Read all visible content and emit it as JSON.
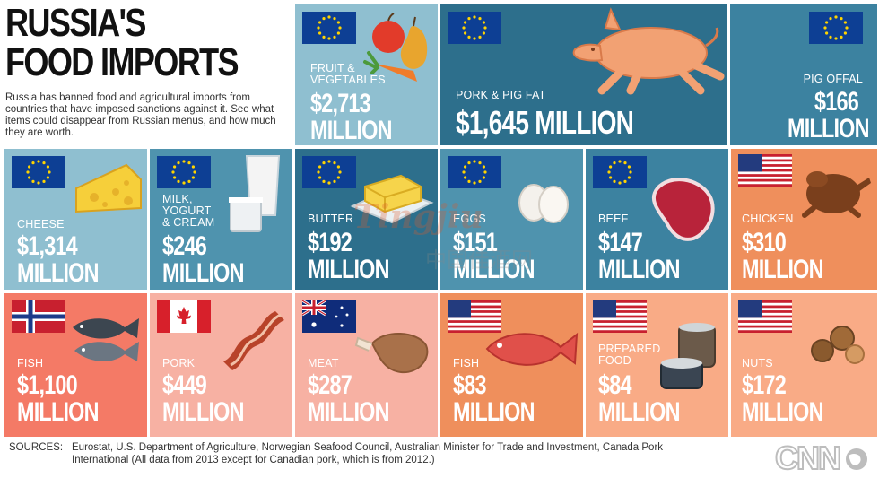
{
  "header": {
    "title_line1": "RUSSIA'S",
    "title_line2": "FOOD IMPORTS",
    "intro": "Russia has banned food and agricultural imports from countries that have imposed sanctions against it. See what items could disappear from Russian menus, and how much they are worth."
  },
  "tiles": {
    "fruit_veg": {
      "label1": "FRUIT &",
      "label2": "VEGETABLES",
      "value1": "$2,713",
      "value2": "MILLION",
      "flag": "eu-flag",
      "icon": "fruit-vegetables-icon"
    },
    "pork_fat": {
      "label": "PORK & PIG FAT",
      "value": "$1,645 MILLION",
      "flag": "eu-flag",
      "icon": "pig-icon"
    },
    "pig_offal": {
      "label": "PIG OFFAL",
      "value1": "$166",
      "value2": "MILLION",
      "flag": "eu-flag"
    },
    "cheese": {
      "label": "CHEESE",
      "value1": "$1,314",
      "value2": "MILLION",
      "flag": "eu-flag",
      "icon": "cheese-icon"
    },
    "milk": {
      "label1": "MILK,",
      "label2": "YOGURT",
      "label3": "& CREAM",
      "value1": "$246",
      "value2": "MILLION",
      "flag": "eu-flag",
      "icon": "milk-icon"
    },
    "butter": {
      "label": "BUTTER",
      "value1": "$192",
      "value2": "MILLION",
      "flag": "eu-flag",
      "icon": "butter-icon"
    },
    "eggs": {
      "label": "EGGS",
      "value1": "$151",
      "value2": "MILLION",
      "flag": "eu-flag",
      "icon": "eggs-icon"
    },
    "beef": {
      "label": "BEEF",
      "value1": "$147",
      "value2": "MILLION",
      "flag": "eu-flag",
      "icon": "steak-icon"
    },
    "chicken": {
      "label": "CHICKEN",
      "value1": "$310",
      "value2": "MILLION",
      "flag": "us-flag",
      "icon": "chicken-icon"
    },
    "fish_no": {
      "label": "FISH",
      "value1": "$1,100",
      "value2": "MILLION",
      "flag": "norway-flag",
      "icon": "fish-icon"
    },
    "pork_ca": {
      "label": "PORK",
      "value1": "$449",
      "value2": "MILLION",
      "flag": "canada-flag",
      "icon": "bacon-icon"
    },
    "meat_au": {
      "label": "MEAT",
      "value1": "$287",
      "value2": "MILLION",
      "flag": "australia-flag",
      "icon": "meat-icon"
    },
    "fish_us": {
      "label": "FISH",
      "value1": "$83",
      "value2": "MILLION",
      "flag": "us-flag",
      "icon": "fish-icon"
    },
    "prepared": {
      "label1": "PREPARED",
      "label2": "FOOD",
      "value1": "$84",
      "value2": "MILLION",
      "flag": "us-flag",
      "icon": "cans-icon"
    },
    "nuts": {
      "label": "NUTS",
      "value1": "$172",
      "value2": "MILLION",
      "flag": "us-flag",
      "icon": "nuts-icon"
    }
  },
  "colors": {
    "blue_light": "#8fbfd0",
    "blue_mid": "#4f93ae",
    "blue_dark": "#2d6f8c",
    "blue_tile": "#3c82a0",
    "salmon": "#f47a66",
    "pink": "#f7b1a3",
    "orange": "#ef8f5c",
    "peach": "#f9ab86"
  },
  "footer": {
    "sources_tag": "SOURCES:",
    "sources_text": "Eurostat, U.S. Department of Agriculture, Norwegian Seafood Council, Australian Minister for Trade and Investment, Canada Pork International (All data from 2013 except for Canadian pork, which is from 2012.)",
    "logo": "CNN",
    "watermark_latin": "Tingjiu",
    "watermark_cjk": "中国佳酒网"
  }
}
